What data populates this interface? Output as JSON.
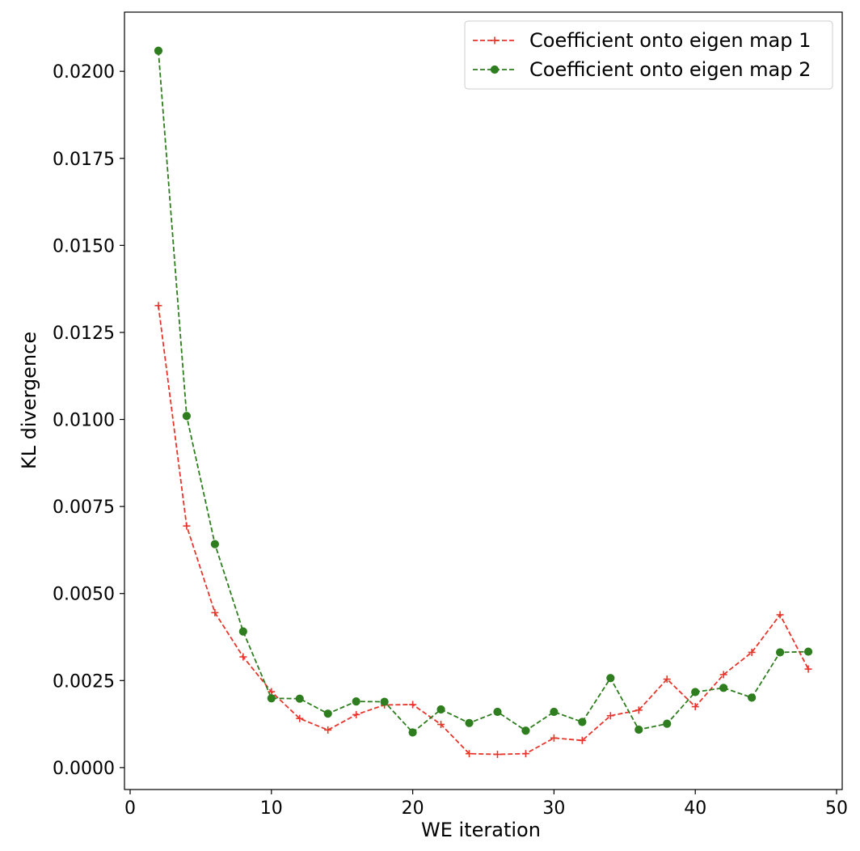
{
  "chart_data": {
    "type": "line",
    "title": "",
    "xlabel": "WE iteration",
    "ylabel": "KL divergence",
    "xlim": [
      -0.4,
      50.4
    ],
    "ylim": [
      -0.00063,
      0.0217
    ],
    "xticks": [
      0,
      10,
      20,
      30,
      40,
      50
    ],
    "yticks": [
      0.0,
      0.0025,
      0.005,
      0.0075,
      0.01,
      0.0125,
      0.015,
      0.0175,
      0.02
    ],
    "xtick_labels": [
      "0",
      "10",
      "20",
      "30",
      "40",
      "50"
    ],
    "ytick_labels": [
      "0.0000",
      "0.0025",
      "0.0050",
      "0.0075",
      "0.0100",
      "0.0125",
      "0.0150",
      "0.0175",
      "0.0200"
    ],
    "grid": false,
    "legend_position": "top-right",
    "x": [
      2,
      4,
      6,
      8,
      10,
      12,
      14,
      16,
      18,
      20,
      22,
      24,
      26,
      28,
      30,
      32,
      34,
      36,
      38,
      40,
      42,
      44,
      46,
      48
    ],
    "series": [
      {
        "name": "Coefficient onto eigen map 1",
        "color": "#e8352b",
        "marker": "plus",
        "line_style": "dashed",
        "values": [
          0.01327,
          0.00694,
          0.00445,
          0.00318,
          0.00218,
          0.00141,
          0.00108,
          0.00152,
          0.0018,
          0.00181,
          0.00124,
          0.0004,
          0.00038,
          0.0004,
          0.00085,
          0.00078,
          0.00149,
          0.00165,
          0.00254,
          0.00175,
          0.00267,
          0.00331,
          0.00439,
          0.00283
        ]
      },
      {
        "name": "Coefficient onto eigen map 2",
        "color": "#2e7d1e",
        "marker": "circle",
        "line_style": "dashed",
        "values": [
          0.02059,
          0.0101,
          0.00642,
          0.00391,
          0.00199,
          0.00198,
          0.00155,
          0.0019,
          0.00189,
          0.00101,
          0.00167,
          0.00128,
          0.0016,
          0.00106,
          0.0016,
          0.00131,
          0.00257,
          0.00109,
          0.00126,
          0.00217,
          0.00229,
          0.00201,
          0.00331,
          0.00333
        ]
      }
    ]
  }
}
